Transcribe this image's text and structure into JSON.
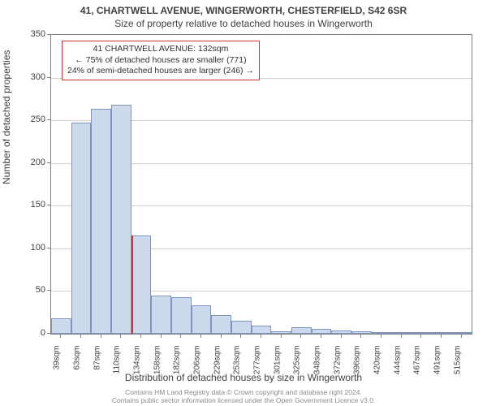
{
  "title_main": "41, CHARTWELL AVENUE, WINGERWORTH, CHESTERFIELD, S42 6SR",
  "title_sub": "Size of property relative to detached houses in Wingerworth",
  "y_axis_label": "Number of detached properties",
  "x_axis_label": "Distribution of detached houses by size in Wingerworth",
  "chart": {
    "type": "histogram",
    "bar_fill": "#cdd9ec",
    "bar_border": "#8094c0",
    "grid_color": "#d0d0d0",
    "axis_color": "#808080",
    "ylim": [
      0,
      350
    ],
    "ytick_step": 50,
    "x_labels": [
      "39sqm",
      "63sqm",
      "87sqm",
      "110sqm",
      "134sqm",
      "158sqm",
      "182sqm",
      "206sqm",
      "229sqm",
      "253sqm",
      "277sqm",
      "301sqm",
      "325sqm",
      "348sqm",
      "372sqm",
      "396sqm",
      "420sqm",
      "444sqm",
      "467sqm",
      "491sqm",
      "515sqm"
    ],
    "values": [
      18,
      247,
      263,
      268,
      115,
      45,
      43,
      33,
      22,
      15,
      10,
      3,
      8,
      6,
      4,
      3,
      2,
      2,
      2,
      2,
      2
    ],
    "marker_bin_index": 4,
    "marker_color": "#cc3333"
  },
  "annotation": {
    "line1": "41 CHARTWELL AVENUE: 132sqm",
    "line2": "← 75% of detached houses are smaller (771)",
    "line3": "24% of semi-detached houses are larger (246) →",
    "border_color": "#cc3333"
  },
  "footer_line1": "Contains HM Land Registry data © Crown copyright and database right 2024.",
  "footer_line2": "Contains public sector information licensed under the Open Government Licence v3.0."
}
